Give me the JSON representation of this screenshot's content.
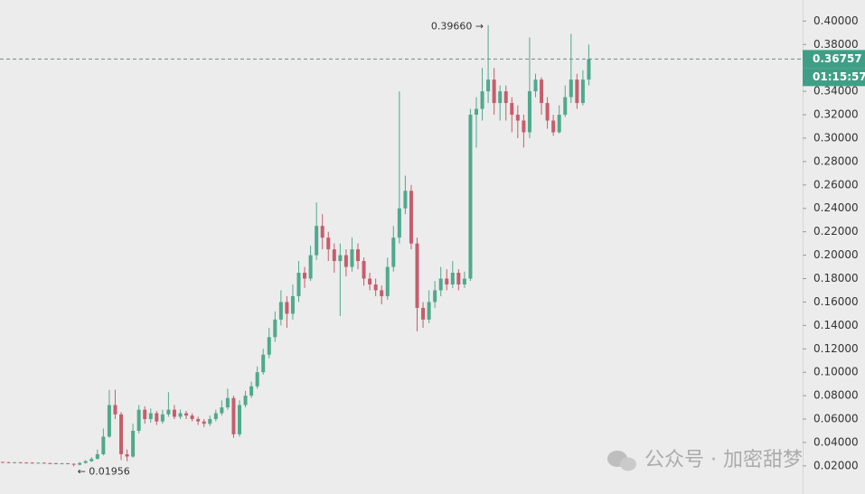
{
  "chart_data": {
    "type": "candlestick",
    "up_color": "#4fa98d",
    "down_color": "#c75d6b",
    "open": [
      0.0234,
      0.0232,
      0.023,
      0.0231,
      0.0229,
      0.0228,
      0.0226,
      0.0227,
      0.0224,
      0.0223,
      0.0221,
      0.0222,
      0.0218,
      0.021,
      0.0225,
      0.024,
      0.026,
      0.03,
      0.045,
      0.072,
      0.064,
      0.03,
      0.028,
      0.05,
      0.068,
      0.06,
      0.065,
      0.058,
      0.064,
      0.068,
      0.062,
      0.065,
      0.063,
      0.06,
      0.058,
      0.056,
      0.06,
      0.065,
      0.07,
      0.078,
      0.047,
      0.072,
      0.08,
      0.088,
      0.1,
      0.115,
      0.13,
      0.145,
      0.16,
      0.15,
      0.165,
      0.185,
      0.18,
      0.2,
      0.225,
      0.215,
      0.205,
      0.195,
      0.2,
      0.19,
      0.205,
      0.195,
      0.18,
      0.175,
      0.17,
      0.165,
      0.19,
      0.215,
      0.24,
      0.255,
      0.21,
      0.155,
      0.145,
      0.16,
      0.17,
      0.18,
      0.175,
      0.185,
      0.175,
      0.18,
      0.32,
      0.325,
      0.34,
      0.35,
      0.33,
      0.34,
      0.33,
      0.32,
      0.315,
      0.305,
      0.34,
      0.35,
      0.33,
      0.315,
      0.305,
      0.32,
      0.335,
      0.35,
      0.33,
      0.35
    ],
    "high": [
      0.0237,
      0.0235,
      0.0234,
      0.0233,
      0.0232,
      0.0231,
      0.023,
      0.0229,
      0.0227,
      0.0226,
      0.0225,
      0.0224,
      0.0221,
      0.0232,
      0.025,
      0.0275,
      0.034,
      0.052,
      0.085,
      0.085,
      0.066,
      0.034,
      0.056,
      0.072,
      0.071,
      0.069,
      0.067,
      0.068,
      0.083,
      0.072,
      0.068,
      0.067,
      0.065,
      0.062,
      0.06,
      0.063,
      0.068,
      0.076,
      0.086,
      0.08,
      0.076,
      0.084,
      0.092,
      0.105,
      0.12,
      0.138,
      0.152,
      0.17,
      0.165,
      0.175,
      0.195,
      0.19,
      0.208,
      0.245,
      0.235,
      0.22,
      0.21,
      0.21,
      0.205,
      0.215,
      0.21,
      0.198,
      0.185,
      0.18,
      0.174,
      0.198,
      0.225,
      0.34,
      0.268,
      0.26,
      0.215,
      0.16,
      0.17,
      0.178,
      0.19,
      0.188,
      0.195,
      0.188,
      0.186,
      0.325,
      0.335,
      0.36,
      0.3966,
      0.36,
      0.345,
      0.345,
      0.335,
      0.328,
      0.32,
      0.386,
      0.355,
      0.352,
      0.335,
      0.32,
      0.328,
      0.345,
      0.389,
      0.355,
      0.358,
      0.38
    ],
    "low": [
      0.0229,
      0.0228,
      0.0227,
      0.0226,
      0.0225,
      0.0224,
      0.0223,
      0.0221,
      0.022,
      0.0218,
      0.0218,
      0.0215,
      0.01956,
      0.0205,
      0.022,
      0.0235,
      0.0255,
      0.029,
      0.044,
      0.06,
      0.025,
      0.024,
      0.027,
      0.048,
      0.056,
      0.057,
      0.055,
      0.056,
      0.062,
      0.06,
      0.06,
      0.06,
      0.058,
      0.055,
      0.053,
      0.054,
      0.058,
      0.063,
      0.068,
      0.044,
      0.045,
      0.07,
      0.078,
      0.086,
      0.098,
      0.112,
      0.126,
      0.14,
      0.138,
      0.145,
      0.16,
      0.172,
      0.178,
      0.196,
      0.205,
      0.195,
      0.185,
      0.148,
      0.182,
      0.186,
      0.188,
      0.174,
      0.17,
      0.165,
      0.158,
      0.162,
      0.186,
      0.21,
      0.235,
      0.205,
      0.135,
      0.138,
      0.142,
      0.155,
      0.165,
      0.17,
      0.172,
      0.17,
      0.172,
      0.178,
      0.292,
      0.315,
      0.33,
      0.32,
      0.315,
      0.315,
      0.305,
      0.3,
      0.292,
      0.3,
      0.335,
      0.32,
      0.308,
      0.302,
      0.304,
      0.318,
      0.33,
      0.325,
      0.328,
      0.345
    ],
    "close": [
      0.0232,
      0.023,
      0.0231,
      0.0229,
      0.0228,
      0.0226,
      0.0227,
      0.0224,
      0.0223,
      0.0221,
      0.0222,
      0.0218,
      0.021,
      0.0225,
      0.024,
      0.026,
      0.03,
      0.045,
      0.072,
      0.064,
      0.03,
      0.028,
      0.05,
      0.068,
      0.06,
      0.065,
      0.058,
      0.064,
      0.068,
      0.062,
      0.065,
      0.063,
      0.06,
      0.058,
      0.056,
      0.06,
      0.065,
      0.07,
      0.078,
      0.047,
      0.072,
      0.08,
      0.088,
      0.1,
      0.115,
      0.13,
      0.145,
      0.16,
      0.15,
      0.165,
      0.185,
      0.18,
      0.2,
      0.225,
      0.215,
      0.205,
      0.195,
      0.2,
      0.19,
      0.205,
      0.195,
      0.18,
      0.175,
      0.17,
      0.165,
      0.19,
      0.215,
      0.24,
      0.255,
      0.21,
      0.155,
      0.145,
      0.16,
      0.17,
      0.18,
      0.175,
      0.185,
      0.175,
      0.18,
      0.32,
      0.325,
      0.34,
      0.35,
      0.33,
      0.34,
      0.33,
      0.32,
      0.315,
      0.305,
      0.34,
      0.35,
      0.33,
      0.315,
      0.305,
      0.32,
      0.335,
      0.35,
      0.33,
      0.35,
      0.36757
    ],
    "ylim": [
      -0.004,
      0.418
    ],
    "yticks": [
      {
        "value": 0.02,
        "label": "0.02000"
      },
      {
        "value": 0.04,
        "label": "0.04000"
      },
      {
        "value": 0.06,
        "label": "0.06000"
      },
      {
        "value": 0.08,
        "label": "0.08000"
      },
      {
        "value": 0.1,
        "label": "0.10000"
      },
      {
        "value": 0.12,
        "label": "0.12000"
      },
      {
        "value": 0.14,
        "label": "0.14000"
      },
      {
        "value": 0.16,
        "label": "0.16000"
      },
      {
        "value": 0.18,
        "label": "0.18000"
      },
      {
        "value": 0.2,
        "label": "0.20000"
      },
      {
        "value": 0.22,
        "label": "0.22000"
      },
      {
        "value": 0.24,
        "label": "0.24000"
      },
      {
        "value": 0.26,
        "label": "0.26000"
      },
      {
        "value": 0.28,
        "label": "0.28000"
      },
      {
        "value": 0.3,
        "label": "0.30000"
      },
      {
        "value": 0.32,
        "label": "0.32000"
      },
      {
        "value": 0.34,
        "label": "0.34000"
      },
      {
        "value": 0.38,
        "label": "0.38000"
      },
      {
        "value": 0.4,
        "label": "0.40000"
      }
    ],
    "high_label": "0.39660 →",
    "low_label": "← 0.01956",
    "last_price": {
      "value": 0.36757,
      "label": "0.36757"
    },
    "countdown": "01:15:57",
    "watermark": "公众号 · 加密甜梦"
  }
}
